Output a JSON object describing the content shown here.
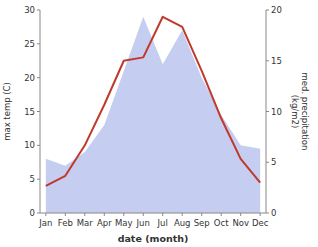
{
  "chart_data": {
    "type": "line",
    "categories": [
      "Jan",
      "Feb",
      "Mar",
      "Apr",
      "May",
      "Jun",
      "Jul",
      "Aug",
      "Sep",
      "Oct",
      "Nov",
      "Dec"
    ],
    "series": [
      {
        "type": "area",
        "color": "#c5cef0",
        "values": [
          8.0,
          7.0,
          9.0,
          13.0,
          21.0,
          29.0,
          22.0,
          27.0,
          20.0,
          14.5,
          10.0,
          9.5
        ]
      },
      {
        "type": "line",
        "color": "#c0392b",
        "values": [
          4.0,
          5.5,
          10.0,
          16.0,
          22.5,
          23.0,
          29.0,
          27.5,
          21.0,
          14.0,
          8.0,
          4.5
        ]
      }
    ],
    "x_label": "date (month)",
    "y_label": "max temp (C)",
    "y2_label": "med. precipitation\n(kg/m2)",
    "ylim": [
      0,
      30
    ],
    "yticks": [
      0,
      5,
      10,
      15,
      20,
      25,
      30
    ],
    "y2lim": [
      0,
      20
    ],
    "y2ticks": [
      0,
      5,
      10,
      15,
      20
    ],
    "grid": false,
    "legend": false
  }
}
